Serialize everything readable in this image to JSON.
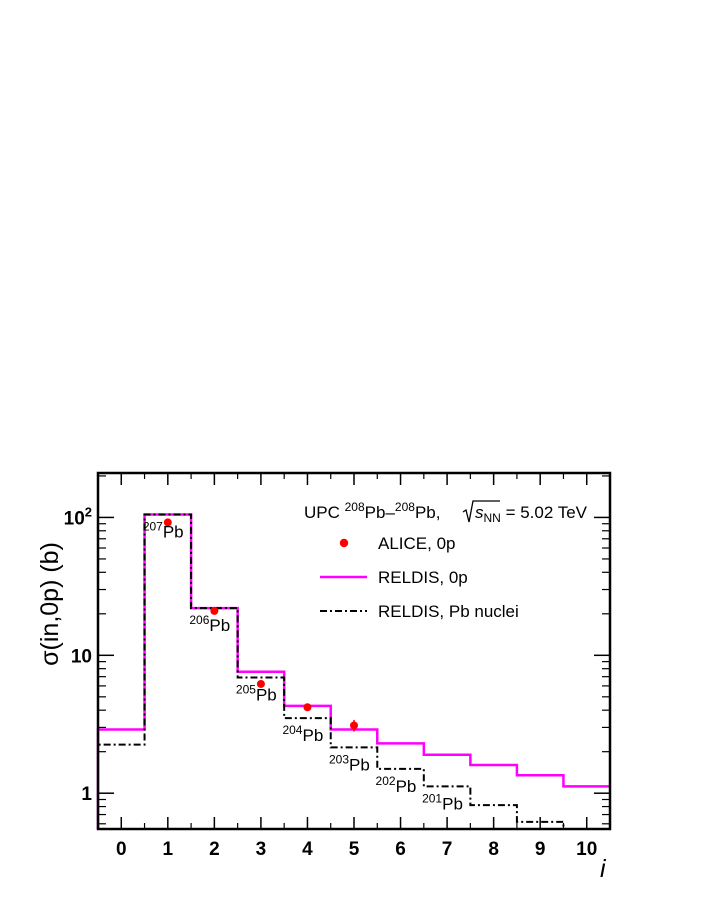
{
  "chart_data": {
    "type": "step",
    "xlabel": "i",
    "ylabel": "σ(in,0p) (b)",
    "ylog": true,
    "xlim": [
      -0.5,
      10.5
    ],
    "ylim": [
      0.55,
      210
    ],
    "x_ticks": [
      "0",
      "1",
      "2",
      "3",
      "4",
      "5",
      "6",
      "7",
      "8",
      "9",
      "10"
    ],
    "y_ticks": [
      {
        "value": 1,
        "label": "1"
      },
      {
        "value": 10,
        "label": "10"
      },
      {
        "value": 100,
        "label": "10",
        "sup": "2"
      }
    ],
    "title": {
      "prefix": "UPC ",
      "sup1": "208",
      "mid": "Pb–",
      "sup2": "208",
      "mid2": "Pb, ",
      "s": "s",
      "sub": "NN",
      "suffix": " = 5.02 TeV"
    },
    "series": [
      {
        "name": "ALICE, 0p",
        "kind": "points",
        "color": "#ff0000",
        "x": [
          1,
          2,
          3,
          4,
          5
        ],
        "y": [
          92,
          21,
          6.2,
          4.2,
          3.1
        ],
        "err": [
          0,
          0,
          0,
          0,
          0.3
        ]
      },
      {
        "name": "RELDIS, 0p",
        "kind": "step",
        "color": "#ff00ff",
        "x": [
          0,
          1,
          2,
          3,
          4,
          5,
          6,
          7,
          8,
          9,
          10
        ],
        "y": [
          2.9,
          105,
          22,
          7.6,
          4.3,
          2.9,
          2.3,
          1.9,
          1.6,
          1.35,
          1.12
        ]
      },
      {
        "name": "RELDIS, Pb nuclei",
        "kind": "step",
        "color": "#000000",
        "x": [
          0,
          1,
          2,
          3,
          4,
          5,
          6,
          7,
          8,
          9,
          10
        ],
        "y": [
          2.25,
          105,
          22,
          6.9,
          3.5,
          2.15,
          1.5,
          1.12,
          0.82,
          0.62,
          0.55
        ]
      }
    ],
    "isotope_labels": [
      {
        "mass": "207",
        "el": "Pb",
        "i": 1
      },
      {
        "mass": "206",
        "el": "Pb",
        "i": 2
      },
      {
        "mass": "205",
        "el": "Pb",
        "i": 3
      },
      {
        "mass": "204",
        "el": "Pb",
        "i": 4
      },
      {
        "mass": "203",
        "el": "Pb",
        "i": 5
      },
      {
        "mass": "202",
        "el": "Pb",
        "i": 6
      },
      {
        "mass": "201",
        "el": "Pb",
        "i": 7
      }
    ]
  }
}
